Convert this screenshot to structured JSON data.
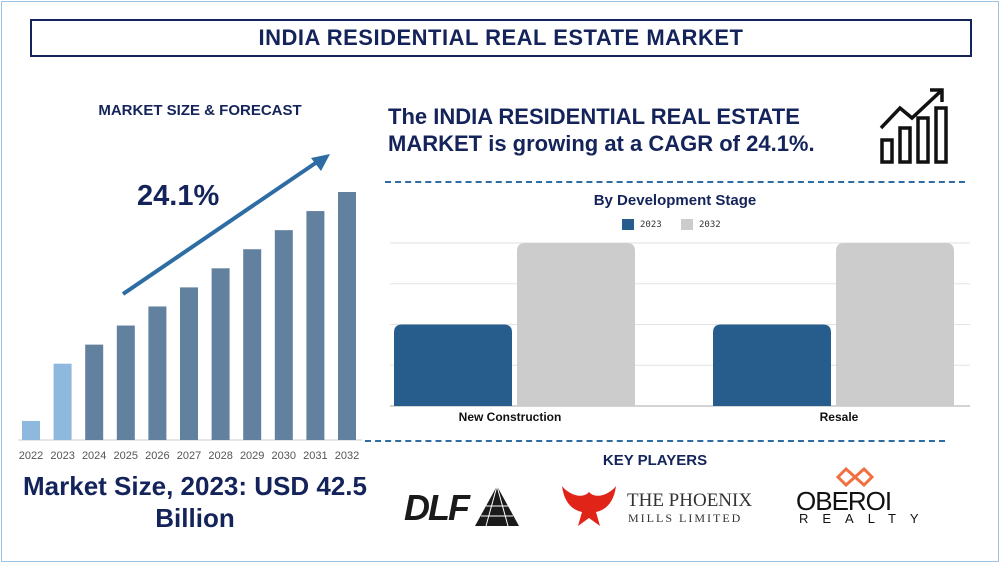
{
  "title": "INDIA RESIDENTIAL REAL ESTATE MARKET",
  "market_size_heading": "MARKET SIZE & FORECAST",
  "cagr_label": "24.1%",
  "market_size_text": "Market Size, 2023: USD 42.5 Billion",
  "headline": "The INDIA RESIDENTIAL REAL ESTATE MARKET is growing at a CAGR of 24.1%.",
  "key_players_heading": "KEY PLAYERS",
  "key_players": [
    "DLF",
    "THE PHOENIX MILLS LIMITED",
    "OBEROI REALTY"
  ],
  "logos": {
    "dlf": "DLF",
    "phoenix_line1": "THE PHOENIX",
    "phoenix_line2": "MILLS LIMITED",
    "oberoi_line1": "OBEROI",
    "oberoi_line2": "REALTY"
  },
  "colors": {
    "navy": "#14245a",
    "bar_hist": "#8fb8df",
    "bar_forecast": "#62819f",
    "series_2023": "#275d8c",
    "series_2032": "#cccccc",
    "arrow": "#2e6da4"
  },
  "chart_data": [
    {
      "type": "bar",
      "title": "",
      "categories": [
        "2022",
        "2023",
        "2024",
        "2025",
        "2026",
        "2027",
        "2028",
        "2029",
        "2030",
        "2031",
        "2032"
      ],
      "values": [
        1,
        4,
        5,
        6,
        7,
        8,
        9,
        10,
        11,
        12,
        13
      ],
      "value_units": "relative (no axis printed)",
      "grid": false,
      "annotation": "24.1%",
      "highlighted_categories": [
        "2022",
        "2023"
      ]
    },
    {
      "type": "bar",
      "title": "By Development Stage",
      "categories": [
        "New Construction",
        "Resale"
      ],
      "series": [
        {
          "name": "2023",
          "values": [
            2,
            2
          ]
        },
        {
          "name": "2032",
          "values": [
            4,
            4
          ]
        }
      ],
      "ylim": [
        0,
        4
      ],
      "value_units": "relative (no axis labels printed)",
      "grid": true,
      "legend": "top"
    }
  ]
}
